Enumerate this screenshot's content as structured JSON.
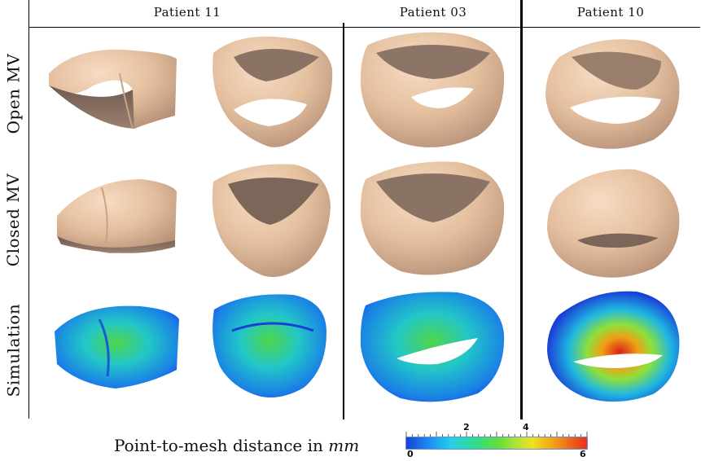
{
  "columns": [
    "Patient 11",
    "Patient 03",
    "Patient 10"
  ],
  "rows": [
    "Open MV",
    "Closed MV",
    "Simulation"
  ],
  "caption": {
    "text": "Point-to-mesh distance in ",
    "unit": "mm"
  },
  "colorbar": {
    "min": "0",
    "max": "6",
    "labels": [
      "0",
      "2",
      "4",
      "6"
    ],
    "unit": "mm"
  },
  "colors": {
    "tissue": "#e8c4a4",
    "tissue_shadow": "#7a6458",
    "low": "#1a3fd6",
    "mid": "#5ce03a",
    "high": "#e8301a"
  }
}
